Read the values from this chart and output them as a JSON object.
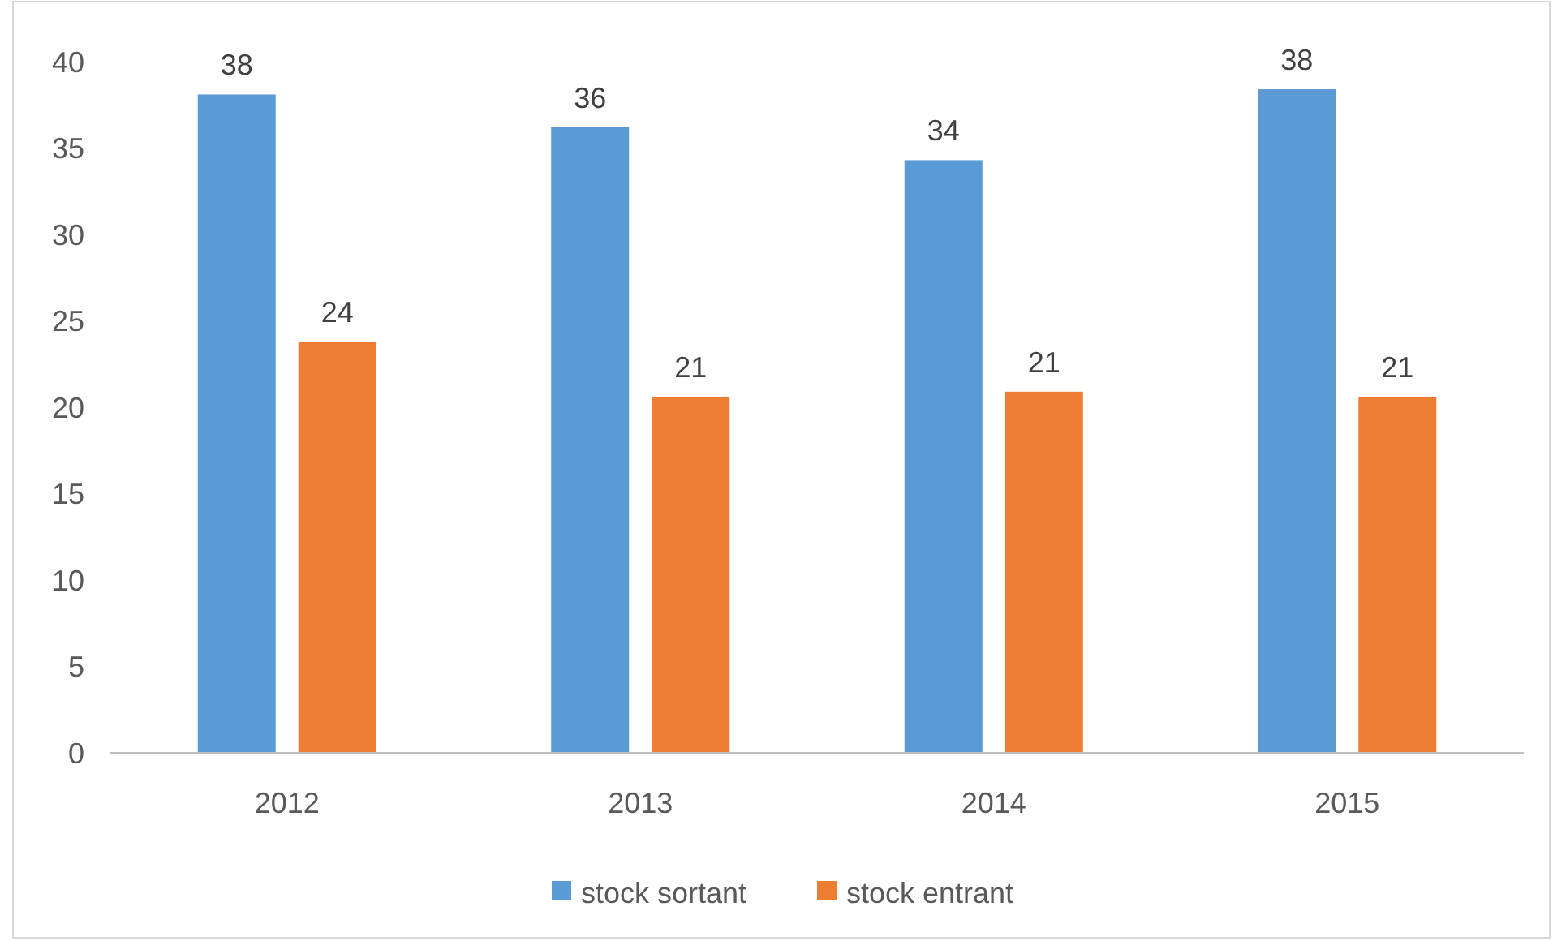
{
  "chart_data": {
    "type": "bar",
    "categories": [
      "2012",
      "2013",
      "2014",
      "2015"
    ],
    "series": [
      {
        "name": "stock sortant",
        "color": "#5b9bd5",
        "values": [
          38.1,
          36.2,
          34.3,
          38.4
        ],
        "value_labels": [
          "38",
          "36",
          "34",
          "38"
        ]
      },
      {
        "name": "stock entrant",
        "color": "#ed7d31",
        "values": [
          23.8,
          20.6,
          20.9,
          20.6
        ],
        "value_labels": [
          "24",
          "21",
          "21",
          "21"
        ]
      }
    ],
    "ylim": [
      0,
      40
    ],
    "yticks": [
      0,
      5,
      10,
      15,
      20,
      25,
      30,
      35,
      40
    ],
    "grid": false,
    "legend": "bottom"
  }
}
